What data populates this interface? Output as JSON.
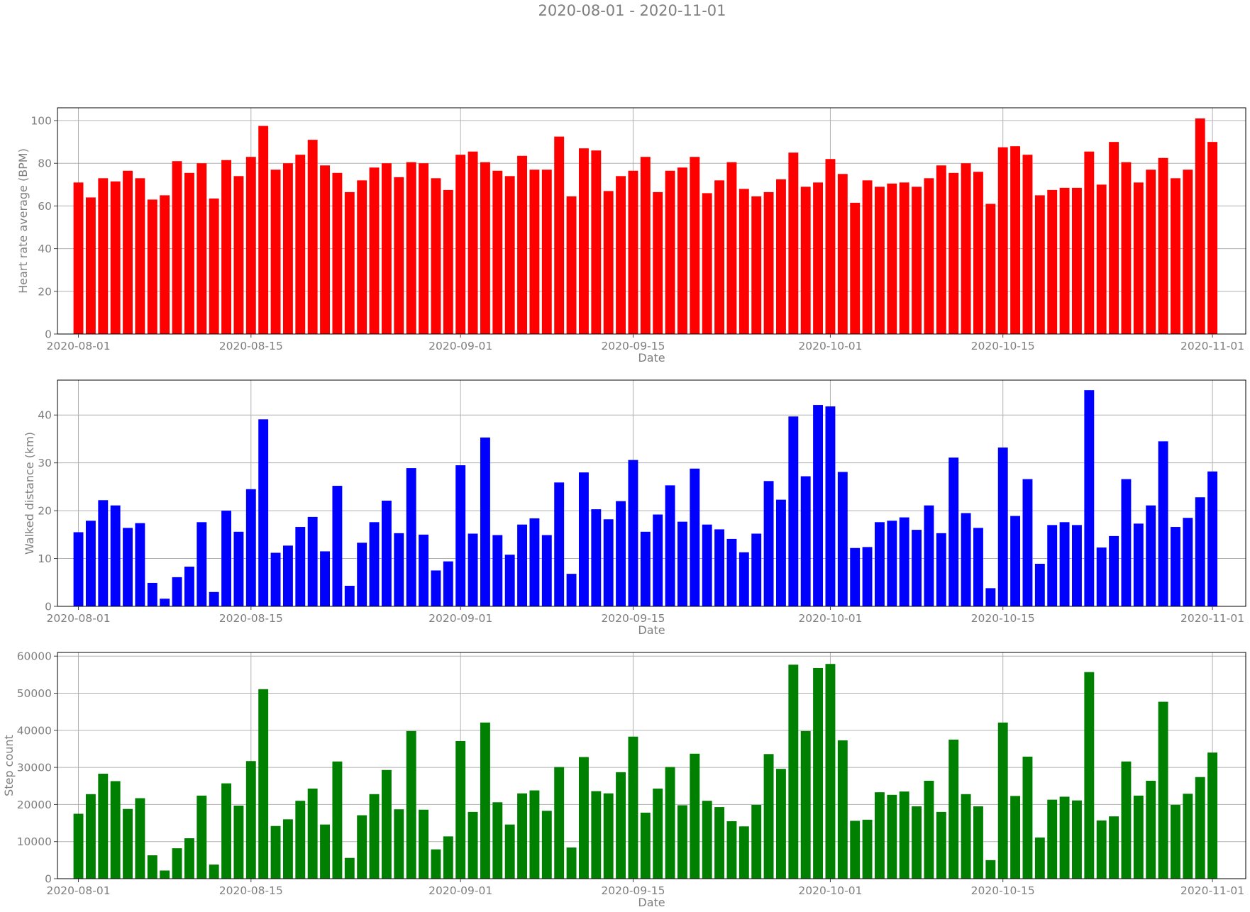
{
  "figure": {
    "title": "2020-08-01 - 2020-11-01"
  },
  "chart_data": [
    {
      "type": "bar",
      "title": "",
      "xlabel": "Date",
      "ylabel": "Heart rate average (BPM)",
      "color": "#ff0000",
      "x_start": "2020-08-01",
      "x_end": "2020-11-01",
      "ylim": [
        0,
        106
      ],
      "yticks": [
        0,
        20,
        40,
        60,
        80,
        100
      ],
      "ytick_labels": [
        "0",
        "20",
        "40",
        "60",
        "80",
        "100"
      ],
      "xticks": [
        "2020-08-01",
        "2020-08-15",
        "2020-09-01",
        "2020-09-15",
        "2020-10-01",
        "2020-10-15",
        "2020-11-01"
      ],
      "grid": true,
      "values": [
        71,
        64,
        73,
        71.5,
        76.5,
        73,
        63,
        65,
        81,
        75.5,
        80,
        63.5,
        81.5,
        74,
        83,
        97.5,
        77,
        80,
        84,
        91,
        79,
        75.5,
        66.5,
        72,
        78,
        80,
        73.5,
        80.5,
        80,
        73,
        67.5,
        84,
        85.5,
        80.5,
        76.5,
        74,
        83.5,
        77,
        77,
        92.5,
        64.5,
        87,
        86,
        67,
        74,
        76.5,
        83,
        66.5,
        76.5,
        78,
        83,
        66,
        72,
        80.5,
        68,
        64.5,
        66.5,
        72.5,
        85,
        69,
        71,
        82,
        75,
        61.5,
        72,
        69,
        70.5,
        71,
        69,
        73,
        79,
        75.5,
        80,
        76,
        61,
        87.5,
        88,
        84,
        65,
        67.5,
        68.5,
        68.5,
        85.5,
        70,
        90,
        80.5,
        71,
        77,
        82.5,
        73,
        77,
        101,
        90
      ]
    },
    {
      "type": "bar",
      "title": "",
      "xlabel": "Date",
      "ylabel": "Walked distance (km)",
      "color": "#0000ff",
      "x_start": "2020-08-01",
      "x_end": "2020-11-01",
      "ylim": [
        0,
        47.3
      ],
      "yticks": [
        0,
        10,
        20,
        30,
        40
      ],
      "ytick_labels": [
        "0",
        "10",
        "20",
        "30",
        "40"
      ],
      "xticks": [
        "2020-08-01",
        "2020-08-15",
        "2020-09-01",
        "2020-09-15",
        "2020-10-01",
        "2020-10-15",
        "2020-11-01"
      ],
      "grid": true,
      "values": [
        15.5,
        17.9,
        22.2,
        21.1,
        16.4,
        17.4,
        4.9,
        1.6,
        6.1,
        8.3,
        17.6,
        3,
        20,
        15.6,
        24.5,
        39.1,
        11.2,
        12.7,
        16.6,
        18.7,
        11.5,
        25.2,
        4.3,
        13.3,
        17.6,
        22.1,
        15.3,
        28.9,
        15,
        7.5,
        9.4,
        29.5,
        15.2,
        35.3,
        14.9,
        10.8,
        17.1,
        18.4,
        14.9,
        25.9,
        6.8,
        28,
        20.3,
        18.2,
        22,
        30.6,
        15.6,
        19.2,
        25.3,
        17.7,
        28.8,
        17.1,
        16.1,
        14.1,
        11.3,
        15.2,
        26.2,
        22.3,
        39.7,
        27.2,
        42.1,
        41.8,
        28.1,
        12.2,
        12.4,
        17.6,
        17.9,
        18.6,
        16,
        21.1,
        15.3,
        31.1,
        19.5,
        16.4,
        3.8,
        33.2,
        18.9,
        26.6,
        8.9,
        17,
        17.6,
        17,
        45.2,
        12.3,
        14.7,
        26.6,
        17.3,
        21.1,
        34.5,
        16.6,
        18.5,
        22.8,
        28.2
      ]
    },
    {
      "type": "bar",
      "title": "",
      "xlabel": "Date",
      "ylabel": "Step count",
      "color": "#008000",
      "x_start": "2020-08-01",
      "x_end": "2020-11-01",
      "ylim": [
        0,
        61000
      ],
      "yticks": [
        0,
        10000,
        20000,
        30000,
        40000,
        50000,
        60000
      ],
      "ytick_labels": [
        "0",
        "10000",
        "20000",
        "30000",
        "40000",
        "50000",
        "60000"
      ],
      "xticks": [
        "2020-08-01",
        "2020-08-15",
        "2020-09-01",
        "2020-09-15",
        "2020-10-01",
        "2020-10-15",
        "2020-11-01"
      ],
      "grid": true,
      "values": [
        17500,
        22800,
        28300,
        26300,
        18800,
        21700,
        6300,
        2200,
        8200,
        10900,
        22400,
        3800,
        25700,
        19700,
        31700,
        51100,
        14200,
        16000,
        21000,
        24300,
        14600,
        31600,
        5600,
        17100,
        22800,
        29300,
        18700,
        39800,
        18600,
        7900,
        11400,
        37100,
        18000,
        42100,
        20600,
        14600,
        23000,
        23800,
        18300,
        30100,
        8400,
        32800,
        23600,
        23000,
        28700,
        38300,
        17800,
        24300,
        30100,
        19800,
        33700,
        21000,
        19300,
        15500,
        14100,
        19900,
        33600,
        29600,
        57700,
        39800,
        56800,
        57900,
        37300,
        15600,
        15900,
        23300,
        22600,
        23500,
        19500,
        26400,
        18000,
        37500,
        22800,
        19500,
        5000,
        42100,
        22300,
        32900,
        11100,
        21300,
        22100,
        21100,
        55700,
        15700,
        16800,
        31600,
        22400,
        26400,
        47700,
        19900,
        22900,
        27400,
        34000
      ]
    }
  ]
}
